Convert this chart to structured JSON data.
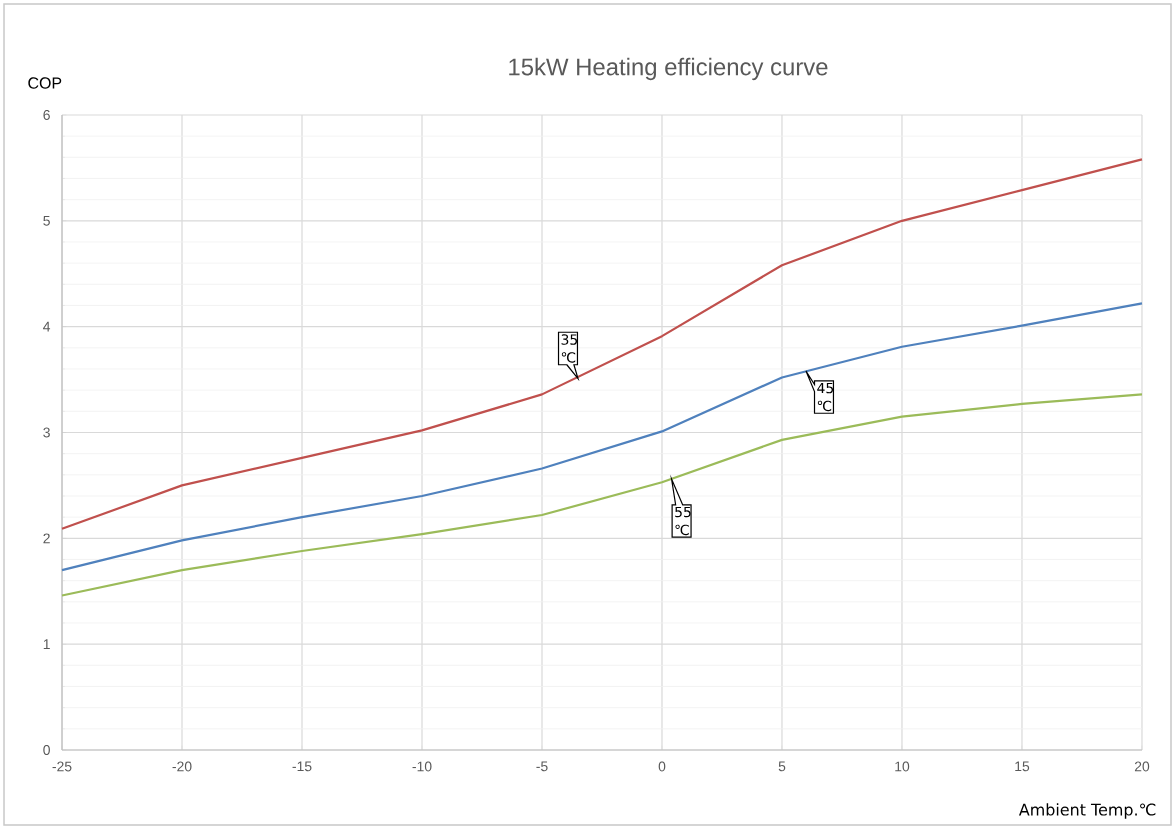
{
  "chart_data": {
    "type": "line",
    "title": "15kW Heating efficiency curve",
    "xlabel": "Ambient Temp.℃",
    "ylabel": "COP",
    "x": [
      -25,
      -20,
      -15,
      -10,
      -5,
      0,
      5,
      10,
      15,
      20
    ],
    "series": [
      {
        "color": "#c0504d",
        "values": [
          2.09,
          2.5,
          2.76,
          3.02,
          3.36,
          3.91,
          4.58,
          5.0,
          5.29,
          5.58
        ]
      },
      {
        "color": "#4f81bd",
        "values": [
          1.7,
          1.98,
          2.2,
          2.4,
          2.66,
          3.01,
          3.52,
          3.81,
          4.01,
          4.22
        ]
      },
      {
        "color": "#9bbb59",
        "values": [
          1.46,
          1.7,
          1.88,
          2.04,
          2.22,
          2.53,
          2.93,
          3.15,
          3.27,
          3.36
        ]
      }
    ],
    "xlim": [
      -25,
      20
    ],
    "ylim": [
      0,
      6
    ],
    "xticks": [
      -25,
      -20,
      -15,
      -10,
      -5,
      0,
      5,
      10,
      15,
      20
    ],
    "yticks": [
      0,
      1,
      2,
      3,
      4,
      5,
      6
    ],
    "grid": true,
    "marker": "none",
    "line_style": "solid",
    "annotations": [
      {
        "text": "35 ℃",
        "x": -3.5,
        "y": 3.51
      },
      {
        "text": "45 ℃",
        "x": 6,
        "y": 3.58
      },
      {
        "text": "55 ℃",
        "x": 0.4,
        "y": 2.56
      }
    ]
  }
}
